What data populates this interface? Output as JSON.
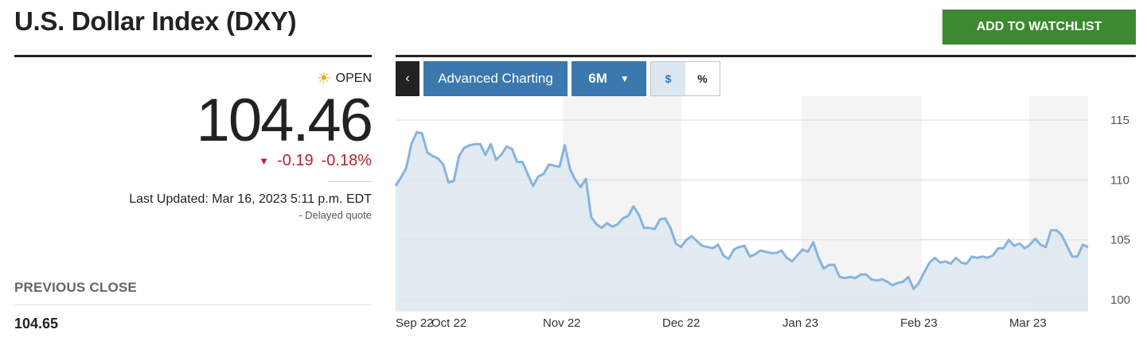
{
  "header": {
    "title": "U.S. Dollar Index (DXY)",
    "watchlist_label": "ADD TO WATCHLIST"
  },
  "quote": {
    "status": "OPEN",
    "status_icon": "sun-icon",
    "price": "104.46",
    "change": "-0.19",
    "change_percent": "-0.18%",
    "change_color": "#b3232f",
    "last_updated": "Last Updated: Mar 16, 2023 5:11 p.m. EDT",
    "delayed": "-  Delayed quote"
  },
  "previous_close": {
    "label": "PREVIOUS CLOSE",
    "value": "104.65"
  },
  "toolbar": {
    "back_icon": "chevron-left-icon",
    "advanced_label": "Advanced Charting",
    "range_label": "6M",
    "range_caret_icon": "caret-down-icon",
    "unit_dollar": "$",
    "unit_percent": "%",
    "accent": "#3a78ad"
  },
  "chart_data": {
    "type": "area",
    "ylim": [
      99,
      117
    ],
    "y_ticks": [
      "115",
      "110",
      "105",
      "100"
    ],
    "x_ticks": [
      "Sep 22",
      "Oct 22",
      "Nov 22",
      "Dec 22",
      "Jan 23",
      "Feb 23",
      "Mar 23"
    ],
    "line_color": "#86b4e0",
    "fill_color": "#dde7ee",
    "series": [
      {
        "name": "",
        "values": [
          109.5,
          110.2,
          111.0,
          113.0,
          114.0,
          113.9,
          112.3,
          112.0,
          111.8,
          111.3,
          109.8,
          109.9,
          112.0,
          112.7,
          112.9,
          113.0,
          113.0,
          112.1,
          113.0,
          111.7,
          112.1,
          112.8,
          112.6,
          111.5,
          111.5,
          110.5,
          109.5,
          110.3,
          110.5,
          111.3,
          111.2,
          111.1,
          112.9,
          110.9,
          110.0,
          109.4,
          110.1,
          106.9,
          106.3,
          106.0,
          106.4,
          106.1,
          106.3,
          106.8,
          107.0,
          107.8,
          107.1,
          106.0,
          106.0,
          105.9,
          106.7,
          106.8,
          106.0,
          104.7,
          104.4,
          105.0,
          105.3,
          104.9,
          104.5,
          104.4,
          104.3,
          104.6,
          103.7,
          103.4,
          104.2,
          104.4,
          104.5,
          103.6,
          103.8,
          104.1,
          104.0,
          103.9,
          103.9,
          104.1,
          103.5,
          103.2,
          103.7,
          104.2,
          104.0,
          104.8,
          103.5,
          102.6,
          102.9,
          102.9,
          101.9,
          101.8,
          101.9,
          101.8,
          102.1,
          102.1,
          101.7,
          101.6,
          101.7,
          101.5,
          101.2,
          101.4,
          101.5,
          101.9,
          100.9,
          101.4,
          102.3,
          103.1,
          103.5,
          103.1,
          103.2,
          103.0,
          103.5,
          103.1,
          103.0,
          103.6,
          103.5,
          103.6,
          103.5,
          103.7,
          104.3,
          104.3,
          105.0,
          104.5,
          104.7,
          104.3,
          104.6,
          105.1,
          104.6,
          104.4,
          105.8,
          105.8,
          105.4,
          104.5,
          103.6,
          103.6,
          104.6,
          104.4
        ]
      }
    ]
  }
}
